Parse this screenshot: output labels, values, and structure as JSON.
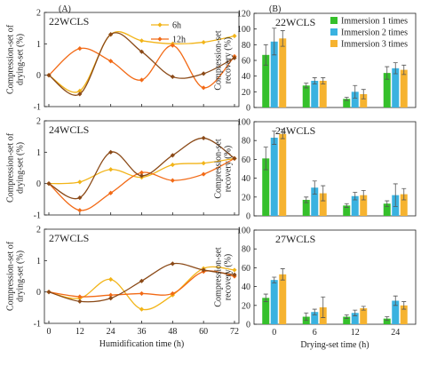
{
  "figure": {
    "label_a": "(A)",
    "label_b": "(B)"
  },
  "chart_data": [
    {
      "type": "line",
      "title": "22WCLS",
      "xlabel": "",
      "ylabel": "Compression-set of drying-set (%)",
      "x": [
        0,
        12,
        24,
        36,
        48,
        60,
        72
      ],
      "xticks": [],
      "xlim": [
        0,
        72
      ],
      "ylim": [
        -1,
        2
      ],
      "yticks": [
        -1,
        0,
        1,
        2
      ],
      "legend": "top-center",
      "series": [
        {
          "name": "6h",
          "color": "#f2b418",
          "values": [
            0,
            -0.5,
            1.3,
            1.1,
            1.0,
            1.05,
            1.25
          ]
        },
        {
          "name": "12h",
          "color": "#f26a16",
          "values": [
            0,
            0.85,
            0.45,
            -0.15,
            0.95,
            -0.4,
            0.6
          ]
        },
        {
          "name": "",
          "color": "#8b4a18",
          "values": [
            0,
            -0.6,
            1.3,
            0.75,
            -0.05,
            0.05,
            0.55
          ]
        }
      ]
    },
    {
      "type": "line",
      "title": "24WCLS",
      "xlabel": "",
      "ylabel": "Compression-set of drying-set (%)",
      "x": [
        0,
        12,
        24,
        36,
        48,
        60,
        72
      ],
      "xticks": [],
      "xlim": [
        0,
        72
      ],
      "ylim": [
        -1,
        2
      ],
      "yticks": [
        -1,
        0,
        1,
        2
      ],
      "legend": "none",
      "series": [
        {
          "name": "6h",
          "color": "#f2b418",
          "values": [
            0,
            0.05,
            0.45,
            0.2,
            0.6,
            0.65,
            0.8
          ]
        },
        {
          "name": "12h",
          "color": "#f26a16",
          "values": [
            0,
            -0.85,
            -0.3,
            0.35,
            0.1,
            0.3,
            0.8
          ]
        },
        {
          "name": "",
          "color": "#8b4a18",
          "values": [
            0,
            -0.45,
            1.0,
            0.25,
            0.9,
            1.45,
            0.8
          ]
        }
      ]
    },
    {
      "type": "line",
      "title": "27WCLS",
      "xlabel": "Humidification time (h)",
      "ylabel": "Compression-set of drying-set (%)",
      "x": [
        0,
        12,
        24,
        36,
        48,
        60,
        72
      ],
      "xticks": [
        "0",
        "12",
        "24",
        "36",
        "48",
        "60",
        "72"
      ],
      "xlim": [
        0,
        72
      ],
      "ylim": [
        -1,
        2
      ],
      "yticks": [
        -1,
        0,
        1,
        2
      ],
      "legend": "none",
      "series": [
        {
          "name": "6h",
          "color": "#f2b418",
          "values": [
            0,
            -0.2,
            0.4,
            -0.55,
            -0.1,
            0.75,
            0.7
          ]
        },
        {
          "name": "12h",
          "color": "#f26a16",
          "values": [
            0,
            -0.15,
            -0.1,
            -0.05,
            -0.05,
            0.65,
            0.5
          ]
        },
        {
          "name": "",
          "color": "#8b4a18",
          "values": [
            0,
            -0.3,
            -0.2,
            0.35,
            0.9,
            0.7,
            0.55
          ]
        }
      ]
    },
    {
      "type": "bar",
      "title": "22WCLS",
      "xlabel": "",
      "ylabel": "Compression-set recovery (%)",
      "categories": [
        "0",
        "6",
        "12",
        "24"
      ],
      "xticks": [],
      "ylim": [
        0,
        120
      ],
      "yticks": [
        0,
        20,
        40,
        60,
        80,
        100,
        120
      ],
      "legend": "top-right",
      "series": [
        {
          "name": "Immersion 1 times",
          "color": "#35c02b",
          "values": [
            67,
            28,
            11,
            44
          ],
          "errors": [
            13,
            3,
            2,
            8
          ]
        },
        {
          "name": "Immersion 2 times",
          "color": "#3ab2e0",
          "values": [
            84,
            34,
            20,
            50
          ],
          "errors": [
            17,
            4,
            8,
            7
          ]
        },
        {
          "name": "Immersion 3 times",
          "color": "#f6b330",
          "values": [
            88,
            34,
            17,
            48
          ],
          "errors": [
            10,
            4,
            6,
            6
          ]
        }
      ]
    },
    {
      "type": "bar",
      "title": "24WCLS",
      "xlabel": "",
      "ylabel": "Compression-set recovery (%)",
      "categories": [
        "0",
        "6",
        "12",
        "24"
      ],
      "xticks": [],
      "ylim": [
        0,
        100
      ],
      "yticks": [
        0,
        20,
        40,
        60,
        80,
        100
      ],
      "legend": "none",
      "series": [
        {
          "name": "Immersion 1 times",
          "color": "#35c02b",
          "values": [
            61,
            17,
            11,
            13
          ],
          "errors": [
            12,
            3,
            2,
            3
          ]
        },
        {
          "name": "Immersion 2 times",
          "color": "#3ab2e0",
          "values": [
            83,
            30,
            21,
            22
          ],
          "errors": [
            7,
            7,
            4,
            12
          ]
        },
        {
          "name": "Immersion 3 times",
          "color": "#f6b330",
          "values": [
            87,
            24,
            22,
            23
          ],
          "errors": [
            5,
            8,
            5,
            6
          ]
        }
      ]
    },
    {
      "type": "bar",
      "title": "27WCLS",
      "xlabel": "Drying-set time (h)",
      "ylabel": "Compression-set recovery (%)",
      "categories": [
        "0",
        "6",
        "12",
        "24"
      ],
      "xticks": [
        "0",
        "6",
        "12",
        "24"
      ],
      "ylim": [
        0,
        100
      ],
      "yticks": [
        0,
        20,
        40,
        60,
        80,
        100
      ],
      "legend": "none",
      "series": [
        {
          "name": "Immersion 1 times",
          "color": "#35c02b",
          "values": [
            28,
            8,
            8,
            6
          ],
          "errors": [
            4,
            4,
            2,
            2
          ]
        },
        {
          "name": "Immersion 2 times",
          "color": "#3ab2e0",
          "values": [
            47,
            13,
            12,
            25
          ],
          "errors": [
            3,
            3,
            3,
            5
          ]
        },
        {
          "name": "Immersion 3 times",
          "color": "#f6b330",
          "values": [
            53,
            18,
            17,
            20
          ],
          "errors": [
            6,
            11,
            2,
            4
          ]
        }
      ]
    }
  ]
}
